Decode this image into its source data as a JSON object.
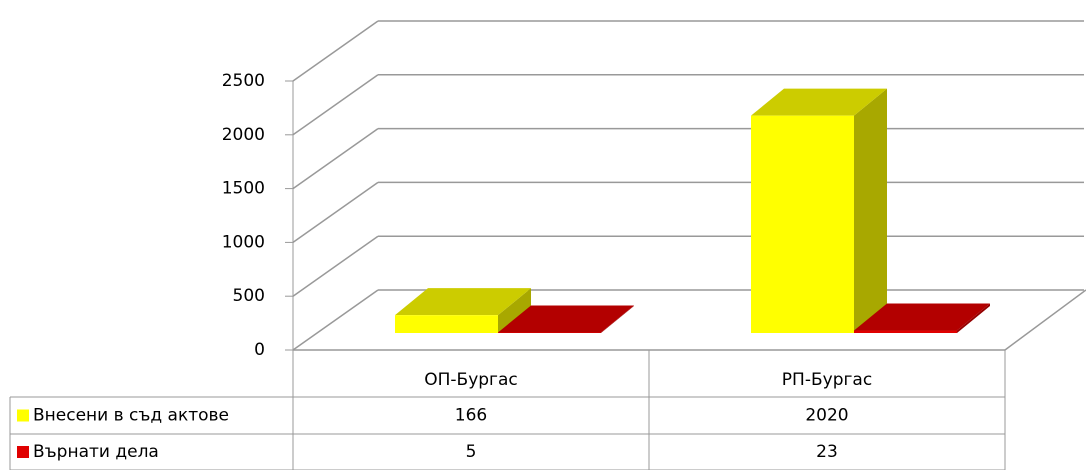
{
  "chart_data": {
    "type": "bar3d",
    "categories": [
      "ОП-Бургас",
      "РП-Бургас"
    ],
    "series": [
      {
        "name": "Внесени в съд актове",
        "color": "#ffff00",
        "values": [
          166,
          2020
        ]
      },
      {
        "name": "Върнати дела",
        "color": "#e00000",
        "values": [
          5,
          23
        ]
      }
    ],
    "ylim": [
      0,
      2500
    ],
    "yticks": [
      0,
      500,
      1000,
      1500,
      2000,
      2500
    ],
    "grid": true
  }
}
